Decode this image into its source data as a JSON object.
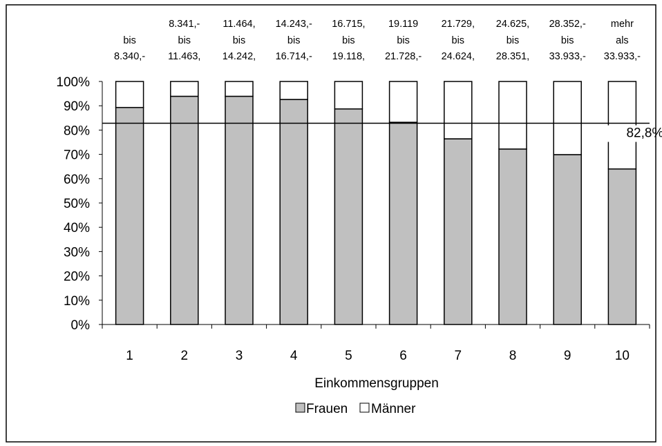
{
  "chart_data": {
    "type": "bar",
    "stacked": true,
    "percent_stacked": true,
    "categories": [
      "1",
      "2",
      "3",
      "4",
      "5",
      "6",
      "7",
      "8",
      "9",
      "10"
    ],
    "group_labels": [
      [
        "bis",
        "8.340,-"
      ],
      [
        "8.341,-",
        "bis",
        "11.463,"
      ],
      [
        "11.464,",
        "bis",
        "14.242,"
      ],
      [
        "14.243,-",
        "bis",
        "16.714,-"
      ],
      [
        "16.715,",
        "bis",
        "19.118,"
      ],
      [
        "19.119",
        "bis",
        "21.728,-"
      ],
      [
        "21.729,",
        "bis",
        "24.624,"
      ],
      [
        "24.625,",
        "bis",
        "28.351,"
      ],
      [
        "28.352,-",
        "bis",
        "33.933,-"
      ],
      [
        "mehr",
        "als",
        "33.933,-"
      ]
    ],
    "series": [
      {
        "name": "Frauen",
        "values": [
          89.3,
          93.9,
          93.9,
          92.6,
          88.7,
          83.2,
          76.4,
          72.2,
          69.9,
          64.0
        ]
      },
      {
        "name": "Männer",
        "values": [
          10.7,
          6.1,
          6.1,
          7.4,
          11.3,
          16.8,
          23.6,
          27.8,
          30.1,
          36.0
        ]
      }
    ],
    "reference_line": {
      "value": 82.8,
      "label": "82,8%"
    },
    "ylim": [
      0,
      100
    ],
    "yticks": [
      "0%",
      "10%",
      "20%",
      "30%",
      "40%",
      "50%",
      "60%",
      "70%",
      "80%",
      "90%",
      "100%"
    ],
    "xlabel": "Einkommensgruppen",
    "ylabel": "",
    "title": "",
    "grid": false,
    "legend_position": "bottom",
    "colors": {
      "Frauen": "#c0c0c0",
      "Männer": "#ffffff",
      "outline": "#000000"
    }
  }
}
